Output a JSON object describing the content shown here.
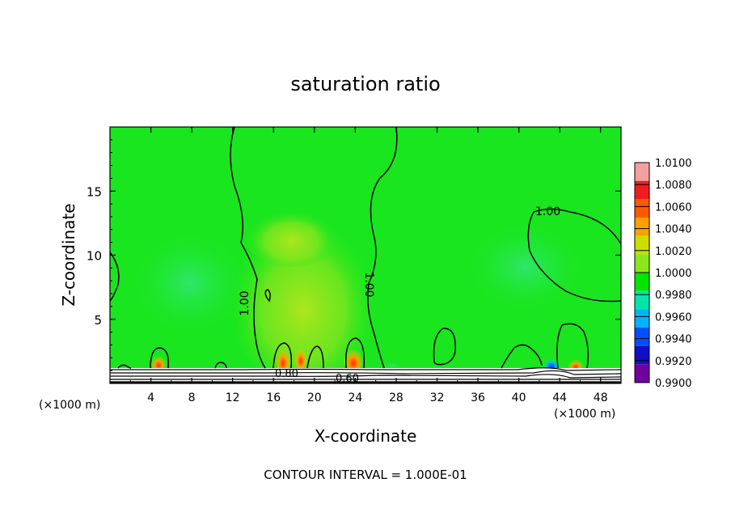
{
  "chart_data": {
    "type": "heatmap",
    "title": "saturation ratio",
    "xlabel": "X-coordinate",
    "ylabel": "Z-coordinate",
    "x_unit": "(×1000 m)",
    "x_range": [
      0,
      50
    ],
    "y_range": [
      0,
      20
    ],
    "x_ticks": [
      "4",
      "8",
      "12",
      "16",
      "20",
      "24",
      "28",
      "32",
      "36",
      "40",
      "44",
      "48"
    ],
    "y_ticks": [
      "5",
      "10",
      "15"
    ],
    "contour_labels": [
      "1.00",
      "1.00",
      "1.00",
      "0.80",
      "0.60"
    ],
    "footer": "CONTOUR INTERVAL = 1.000E-01",
    "colorbar": {
      "levels": [
        "1.0100",
        "1.0080",
        "1.0060",
        "1.0040",
        "1.0020",
        "1.0000",
        "0.9980",
        "0.9960",
        "0.9940",
        "0.9920",
        "0.9900"
      ],
      "colors": [
        "#f4a0a0",
        "#ee1e1e",
        "#ff5a00",
        "#ffa000",
        "#ccdd00",
        "#8ce61e",
        "#00e600",
        "#00e6aa",
        "#00b4ff",
        "#0050ff",
        "#1010c8",
        "#7000a0"
      ]
    },
    "field_colors": {
      "background": "#19e61e",
      "near_surface": "#ffffff",
      "surface_band": "#000000"
    }
  }
}
